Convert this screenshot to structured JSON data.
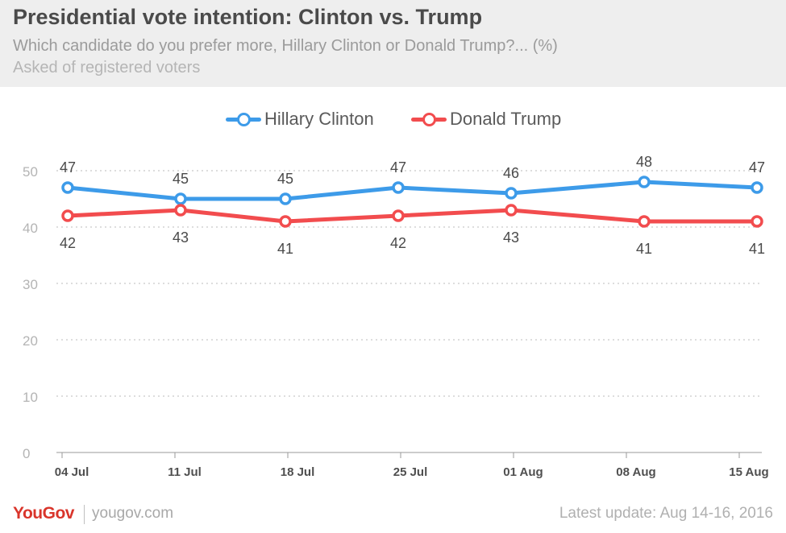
{
  "header": {
    "title": "Presidential vote intention: Clinton vs. Trump",
    "subtitle": "Which candidate do you prefer more, Hillary Clinton or Donald Trump?... (%)",
    "note": "Asked of registered voters"
  },
  "chart_data": {
    "type": "line",
    "x": [
      "04 Jul",
      "11 Jul",
      "18 Jul",
      "25 Jul",
      "01 Aug",
      "08 Aug",
      "15 Aug"
    ],
    "x_positions": [
      0,
      7,
      14,
      21,
      28,
      35,
      42
    ],
    "series": [
      {
        "name": "Hillary Clinton",
        "color": "#3d9be9",
        "points": [
          {
            "x": 0.35,
            "y": 47
          },
          {
            "x": 7.35,
            "y": 45
          },
          {
            "x": 13.85,
            "y": 45
          },
          {
            "x": 20.85,
            "y": 47
          },
          {
            "x": 27.85,
            "y": 46
          },
          {
            "x": 36.1,
            "y": 48
          },
          {
            "x": 43.1,
            "y": 47
          }
        ]
      },
      {
        "name": "Donald Trump",
        "color": "#f24c4e",
        "points": [
          {
            "x": 0.35,
            "y": 42
          },
          {
            "x": 7.35,
            "y": 43
          },
          {
            "x": 13.85,
            "y": 41
          },
          {
            "x": 20.85,
            "y": 42
          },
          {
            "x": 27.85,
            "y": 43
          },
          {
            "x": 36.1,
            "y": 41
          },
          {
            "x": 43.1,
            "y": 41
          }
        ]
      }
    ],
    "ylim": [
      0,
      50
    ],
    "yticks": [
      0,
      10,
      20,
      30,
      40,
      50
    ],
    "grid": true,
    "legend": "top-center"
  },
  "footer": {
    "logo": "YouGov",
    "site": "yougov.com",
    "update": "Latest update: Aug 14-16, 2016"
  }
}
